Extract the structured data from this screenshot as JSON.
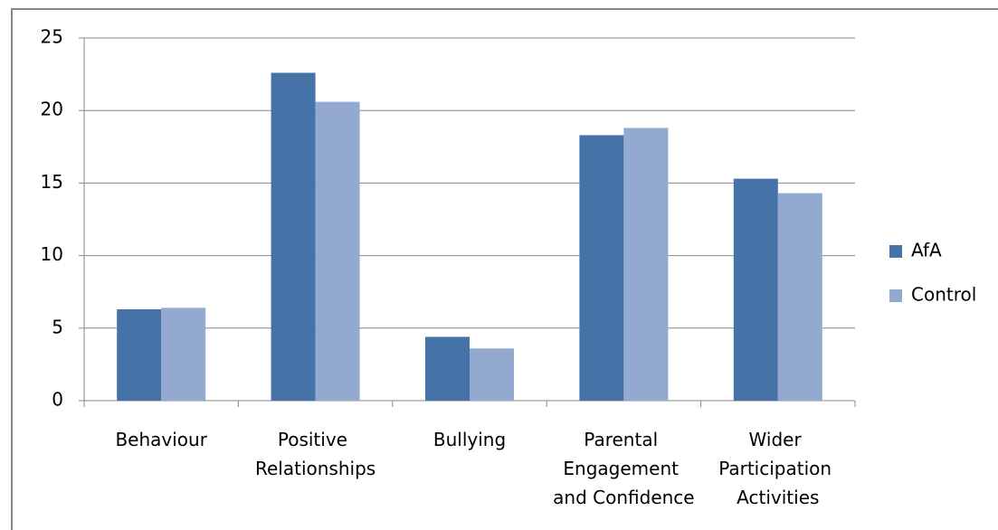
{
  "chart_data": {
    "type": "bar",
    "categories": [
      "Behaviour",
      "Positive Relationships",
      "Bullying",
      "Parental Engagement and Confidence",
      "Wider Participation Activities"
    ],
    "series": [
      {
        "name": "AfA",
        "color": "#4572a7",
        "values": [
          6.3,
          22.6,
          4.4,
          18.3,
          15.3
        ]
      },
      {
        "name": "Control",
        "color": "#94a9d0",
        "values": [
          6.4,
          20.6,
          3.6,
          18.8,
          14.3
        ]
      }
    ],
    "ylim": [
      0,
      25
    ],
    "yticks": [
      0,
      5,
      10,
      15,
      20,
      25
    ],
    "grid": true,
    "legend": "right"
  }
}
